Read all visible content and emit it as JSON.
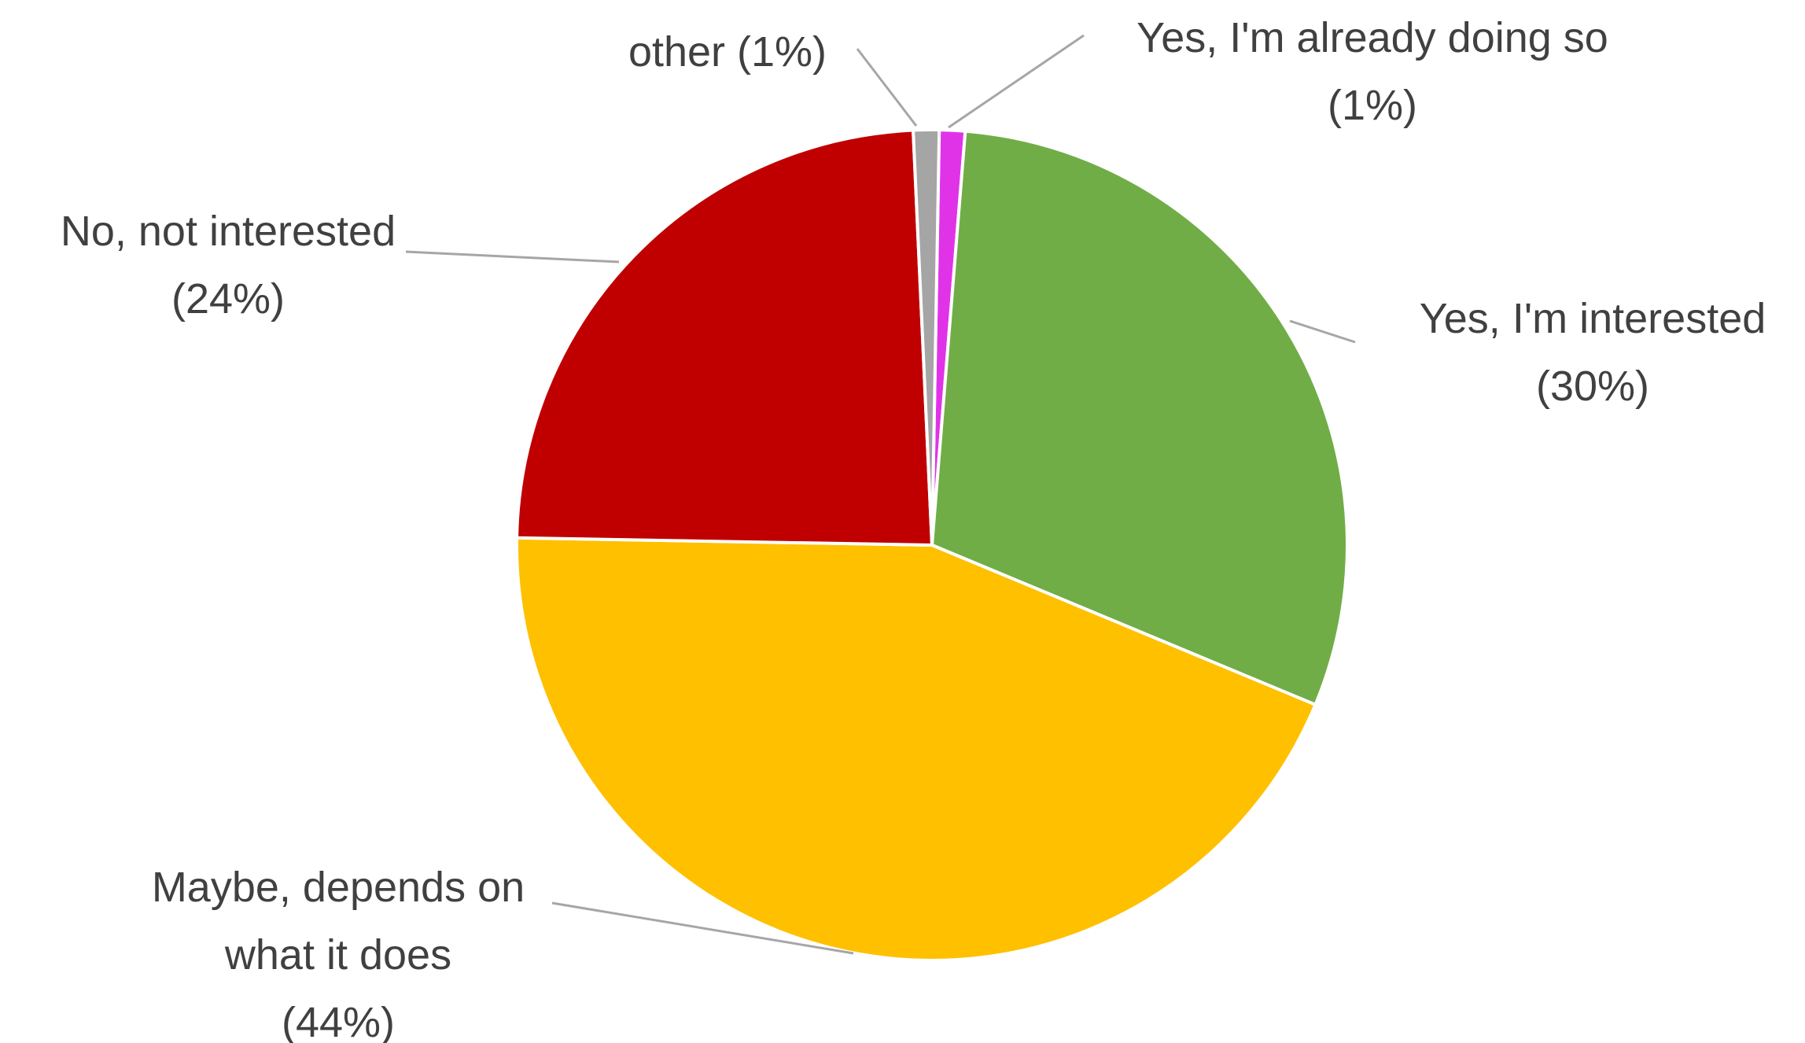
{
  "chart_data": {
    "type": "pie",
    "start_angle_deg": 1,
    "direction": "clockwise",
    "slices": [
      {
        "label": "Yes, I'm already doing so",
        "value": 1,
        "color": "#E033E8",
        "label_lines": [
          "Yes, I'm already doing so",
          "(1%)"
        ]
      },
      {
        "label": "Yes, I'm interested",
        "value": 30,
        "color": "#70AD47",
        "label_lines": [
          "Yes, I'm interested",
          "(30%)"
        ]
      },
      {
        "label": "Maybe, depends on what it does",
        "value": 44,
        "color": "#FFC000",
        "label_lines": [
          "Maybe, depends on",
          "what it does",
          "(44%)"
        ]
      },
      {
        "label": "No, not interested",
        "value": 24,
        "color": "#C00000",
        "label_lines": [
          "No, not interested",
          "(24%)"
        ]
      },
      {
        "label": "other",
        "value": 1,
        "color": "#A5A5A5",
        "label_lines": [
          "other (1%)"
        ]
      }
    ],
    "legend": "none"
  }
}
